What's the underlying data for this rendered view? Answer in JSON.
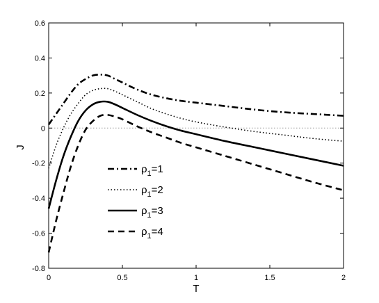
{
  "chart_data": {
    "type": "line",
    "title": "",
    "xlabel": "T",
    "ylabel": "J",
    "xlim": [
      0,
      2
    ],
    "ylim": [
      -0.8,
      0.6
    ],
    "xticks": [
      0,
      0.5,
      1,
      1.5,
      2
    ],
    "xtick_labels": [
      "0",
      "0.5",
      "1",
      "1.5",
      "2"
    ],
    "yticks": [
      -0.8,
      -0.6,
      -0.4,
      -0.2,
      0,
      0.2,
      0.4,
      0.6
    ],
    "ytick_labels": [
      "-0.8",
      "-0.6",
      "-0.4",
      "-0.2",
      "0",
      "0.2",
      "0.4",
      "0.6"
    ],
    "grid": false,
    "legend_position": "center-left",
    "reference_line": {
      "y": 0,
      "style": "dotted",
      "color": "#999999"
    },
    "series": [
      {
        "label_base": "ρ",
        "label_sub": "1",
        "label_rest": "=1",
        "dash": "dashdot",
        "x": [
          0,
          0.05,
          0.1,
          0.15,
          0.2,
          0.25,
          0.3,
          0.35,
          0.4,
          0.45,
          0.5,
          0.6,
          0.7,
          0.8,
          0.9,
          1.0,
          1.2,
          1.4,
          1.6,
          1.8,
          2.0
        ],
        "y": [
          0.02,
          0.08,
          0.14,
          0.2,
          0.25,
          0.28,
          0.3,
          0.305,
          0.3,
          0.28,
          0.26,
          0.22,
          0.19,
          0.17,
          0.155,
          0.145,
          0.125,
          0.105,
          0.09,
          0.08,
          0.07
        ]
      },
      {
        "label_base": "ρ",
        "label_sub": "1",
        "label_rest": "=2",
        "dash": "dotted",
        "x": [
          0,
          0.05,
          0.1,
          0.15,
          0.2,
          0.25,
          0.3,
          0.35,
          0.4,
          0.45,
          0.5,
          0.6,
          0.7,
          0.8,
          0.9,
          1.0,
          1.2,
          1.4,
          1.6,
          1.8,
          2.0
        ],
        "y": [
          -0.23,
          -0.1,
          0.0,
          0.08,
          0.14,
          0.19,
          0.215,
          0.225,
          0.225,
          0.21,
          0.19,
          0.15,
          0.11,
          0.08,
          0.055,
          0.035,
          0.005,
          -0.02,
          -0.04,
          -0.06,
          -0.075
        ]
      },
      {
        "label_base": "ρ",
        "label_sub": "1",
        "label_rest": "=3",
        "dash": "solid",
        "x": [
          0,
          0.05,
          0.1,
          0.15,
          0.2,
          0.25,
          0.3,
          0.35,
          0.4,
          0.45,
          0.5,
          0.6,
          0.7,
          0.8,
          0.9,
          1.0,
          1.2,
          1.4,
          1.6,
          1.8,
          2.0
        ],
        "y": [
          -0.46,
          -0.3,
          -0.16,
          -0.05,
          0.04,
          0.1,
          0.135,
          0.15,
          0.15,
          0.135,
          0.115,
          0.075,
          0.04,
          0.01,
          -0.015,
          -0.035,
          -0.075,
          -0.11,
          -0.145,
          -0.18,
          -0.215
        ]
      },
      {
        "label_base": "ρ",
        "label_sub": "1",
        "label_rest": "=4",
        "dash": "dashed",
        "x": [
          0,
          0.05,
          0.1,
          0.15,
          0.2,
          0.25,
          0.3,
          0.35,
          0.4,
          0.45,
          0.5,
          0.6,
          0.7,
          0.8,
          0.9,
          1.0,
          1.2,
          1.4,
          1.6,
          1.8,
          2.0
        ],
        "y": [
          -0.71,
          -0.53,
          -0.37,
          -0.22,
          -0.1,
          -0.01,
          0.04,
          0.07,
          0.075,
          0.065,
          0.05,
          0.01,
          -0.025,
          -0.055,
          -0.085,
          -0.11,
          -0.16,
          -0.21,
          -0.26,
          -0.31,
          -0.355
        ]
      }
    ]
  }
}
